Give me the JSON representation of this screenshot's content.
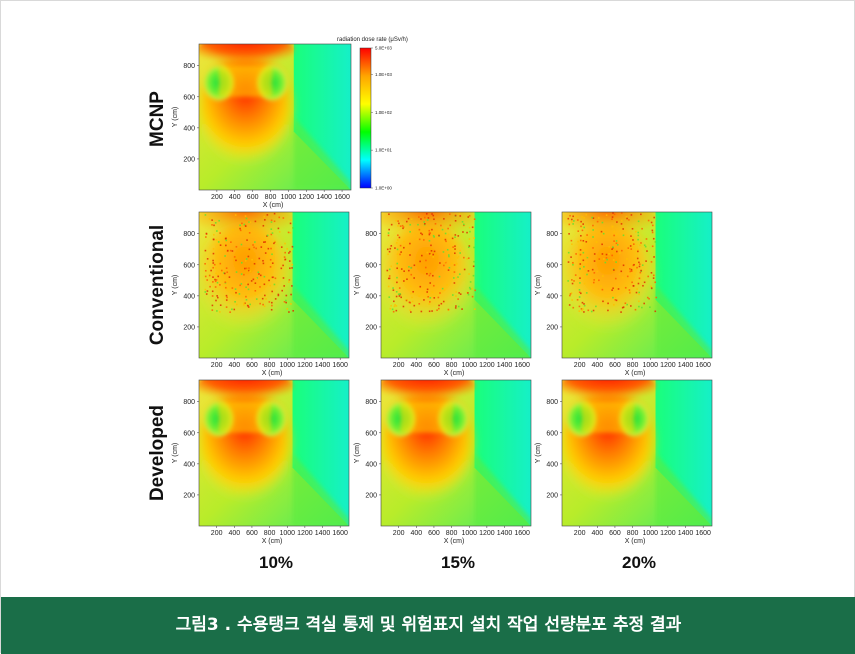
{
  "chart_data": {
    "type": "heatmap",
    "row_labels": [
      "MCNP",
      "Conventional",
      "Developed"
    ],
    "column_labels": [
      "10%",
      "15%",
      "20%"
    ],
    "xlabel": "X (cm)",
    "ylabel": "Y (cm)",
    "xlim": [
      0,
      1700
    ],
    "ylim": [
      0,
      940
    ],
    "x_ticks": [
      "200",
      "400",
      "600",
      "800",
      "1000",
      "1200",
      "1400",
      "1600"
    ],
    "y_ticks": [
      "200",
      "400",
      "600",
      "800"
    ],
    "colorbar": {
      "title": "radiation dose rate (μSv/h)",
      "scale": "log",
      "ticks": [
        "5.0E+03",
        "1.0E+03",
        "1.0E+02",
        "1.0E+01",
        "1.0E+00"
      ],
      "colors": [
        "#ff0000",
        "#ffa500",
        "#ffff00",
        "#00ff00",
        "#00ffff",
        "#0000ff"
      ]
    },
    "panels": [
      {
        "row": "MCNP",
        "column": ""
      },
      {
        "row": "Conventional",
        "column": "10%"
      },
      {
        "row": "Conventional",
        "column": "15%"
      },
      {
        "row": "Conventional",
        "column": "20%"
      },
      {
        "row": "Developed",
        "column": "10%"
      },
      {
        "row": "Developed",
        "column": "15%"
      },
      {
        "row": "Developed",
        "column": "20%"
      }
    ]
  },
  "caption": "그림3 . 수용탱크 격실 통제 및 위험표지 설치 작업 선량분포 추정 결과"
}
